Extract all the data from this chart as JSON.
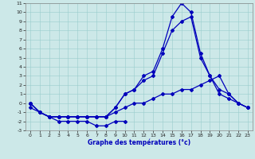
{
  "title": "Graphe des températures (°c)",
  "bg_color": "#cce8e8",
  "line_color": "#0000bb",
  "grid_color": "#99cccc",
  "ylim": [
    -3,
    11
  ],
  "xlim": [
    -0.5,
    23.5
  ],
  "yticks": [
    -3,
    -2,
    -1,
    0,
    1,
    2,
    3,
    4,
    5,
    6,
    7,
    8,
    9,
    10,
    11
  ],
  "xticks": [
    0,
    1,
    2,
    3,
    4,
    5,
    6,
    7,
    8,
    9,
    10,
    11,
    12,
    13,
    14,
    15,
    16,
    17,
    18,
    19,
    20,
    21,
    22,
    23
  ],
  "line_spike": {
    "x": [
      0,
      1,
      2,
      3,
      4,
      5,
      6,
      7,
      8,
      9,
      10,
      11,
      12,
      13,
      14,
      15,
      16,
      17,
      18,
      19,
      20,
      21,
      22,
      23
    ],
    "y": [
      0,
      -1,
      -1.5,
      -1.5,
      -1.5,
      -1.5,
      -1.5,
      -1.5,
      -1.5,
      -0.5,
      1,
      1.5,
      3,
      3.5,
      6,
      9.5,
      11,
      10,
      5.5,
      3,
      1,
      0.5,
      0,
      -0.5
    ]
  },
  "line_second": {
    "x": [
      0,
      1,
      2,
      3,
      4,
      5,
      6,
      7,
      8,
      9,
      10,
      11,
      12,
      13,
      14,
      15,
      16,
      17,
      18,
      19,
      20,
      21,
      22,
      23
    ],
    "y": [
      0,
      -1,
      -1.5,
      -1.5,
      -1.5,
      -1.5,
      -1.5,
      -1.5,
      -1.5,
      -0.5,
      1,
      1.5,
      2.5,
      3,
      5.5,
      8,
      9,
      9.5,
      5,
      3,
      1.5,
      1,
      0,
      -0.5
    ]
  },
  "line_flat": {
    "x": [
      0,
      1,
      2,
      3,
      4,
      5,
      6,
      7,
      8,
      9,
      10,
      11,
      12,
      13,
      14,
      15,
      16,
      17,
      18,
      19,
      20,
      21,
      22,
      23
    ],
    "y": [
      -0.5,
      -1,
      -1.5,
      -1.5,
      -1.5,
      -1.5,
      -1.5,
      -1.5,
      -1.5,
      -1,
      -0.5,
      0,
      0,
      0.5,
      1,
      1,
      1.5,
      1.5,
      2,
      2.5,
      3,
      1,
      0,
      -0.5
    ]
  },
  "line_bottom": {
    "x": [
      0,
      1,
      2,
      3,
      4,
      5,
      6,
      7,
      8,
      9,
      10
    ],
    "y": [
      0,
      -1,
      -1.5,
      -2,
      -2,
      -2,
      -2,
      -2.5,
      -2.5,
      -2,
      -2
    ]
  }
}
